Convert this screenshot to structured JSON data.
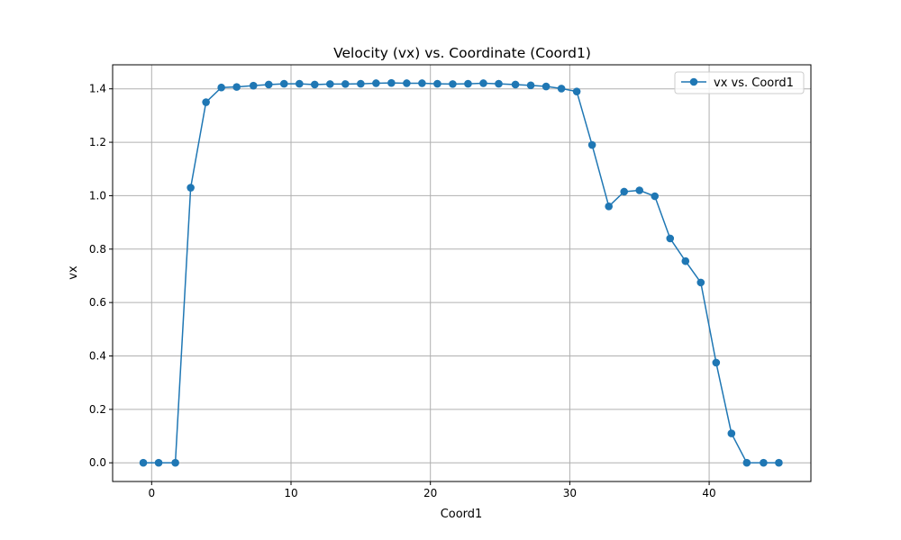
{
  "chart_data": {
    "type": "line",
    "title": "Velocity (vx) vs. Coordinate (Coord1)",
    "xlabel": "Coord1",
    "ylabel": "vx",
    "xlim": [
      -2.8,
      47.3
    ],
    "ylim": [
      -0.07,
      1.49
    ],
    "xticks": [
      0,
      10,
      20,
      30,
      40
    ],
    "xtick_labels": [
      "0",
      "10",
      "20",
      "30",
      "40"
    ],
    "yticks": [
      0.0,
      0.2,
      0.4,
      0.6,
      0.8,
      1.0,
      1.2,
      1.4
    ],
    "ytick_labels": [
      "0.0",
      "0.2",
      "0.4",
      "0.6",
      "0.8",
      "1.0",
      "1.2",
      "1.4"
    ],
    "grid": true,
    "legend_position": "top-right",
    "series": [
      {
        "name": "vx vs. Coord1",
        "color": "#1f77b4",
        "marker": "circle",
        "x": [
          -0.6,
          0.5,
          1.7,
          2.8,
          3.9,
          5.0,
          6.1,
          7.3,
          8.4,
          9.5,
          10.6,
          11.7,
          12.8,
          13.9,
          15.0,
          16.1,
          17.2,
          18.3,
          19.4,
          20.5,
          21.6,
          22.7,
          23.8,
          24.9,
          26.1,
          27.2,
          28.3,
          29.4,
          30.5,
          31.6,
          32.8,
          33.9,
          35.0,
          36.1,
          37.2,
          38.3,
          39.4,
          40.5,
          41.6,
          42.7,
          43.9,
          45.0
        ],
        "y": [
          0.0,
          0.0,
          0.0,
          1.03,
          1.35,
          1.405,
          1.407,
          1.412,
          1.416,
          1.419,
          1.419,
          1.416,
          1.418,
          1.418,
          1.419,
          1.421,
          1.422,
          1.421,
          1.421,
          1.419,
          1.418,
          1.419,
          1.421,
          1.419,
          1.416,
          1.413,
          1.409,
          1.401,
          1.39,
          1.19,
          0.96,
          1.015,
          1.02,
          0.998,
          0.84,
          0.755,
          0.675,
          0.375,
          0.11,
          0.0,
          0.0,
          0.0
        ]
      }
    ]
  }
}
